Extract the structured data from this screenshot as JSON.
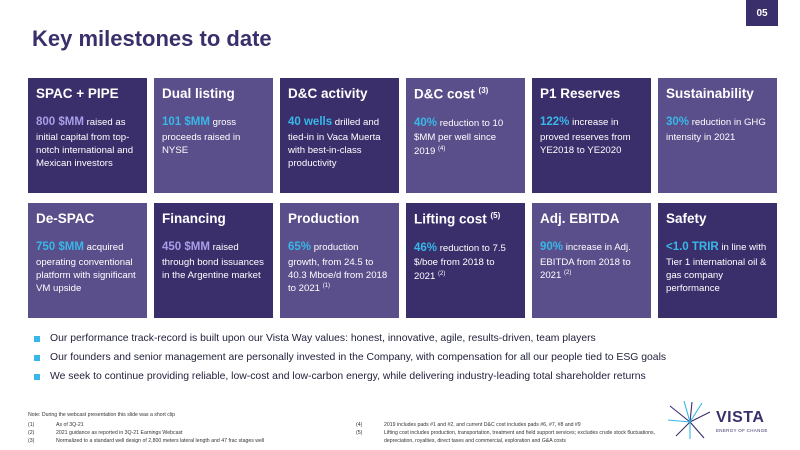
{
  "page_number": "05",
  "title": "Key milestones to date",
  "tiles_row1": [
    {
      "title": "SPAC + PIPE",
      "title_sup": "",
      "highlight": "800 $MM",
      "hl_color": "violet",
      "text": " raised as initial capital from top-notch international and Mexican investors",
      "text_sup": "",
      "bg": "dark"
    },
    {
      "title": "Dual listing",
      "title_sup": "",
      "highlight": "101 $MM",
      "hl_color": "cyan",
      "text": " gross proceeds raised in NYSE",
      "text_sup": "",
      "bg": "mid"
    },
    {
      "title": "D&C activity",
      "title_sup": "",
      "highlight": "40 wells",
      "hl_color": "cyan",
      "text": " drilled and tied-in in Vaca Muerta with best-in-class productivity",
      "text_sup": "",
      "bg": "dark"
    },
    {
      "title": "D&C cost",
      "title_sup": "(3)",
      "highlight": "40%",
      "hl_color": "cyan",
      "text": " reduction to 10 $MM per well since 2019",
      "text_sup": "(4)",
      "bg": "mid"
    },
    {
      "title": "P1 Reserves",
      "title_sup": "",
      "highlight": "122%",
      "hl_color": "cyan",
      "text": " increase in proved reserves from YE2018 to YE2020",
      "text_sup": "",
      "bg": "dark"
    },
    {
      "title": "Sustainability",
      "title_sup": "",
      "highlight": "30%",
      "hl_color": "cyan",
      "text": " reduction in GHG intensity in 2021",
      "text_sup": "",
      "bg": "mid"
    }
  ],
  "tiles_row2": [
    {
      "title": "De-SPAC",
      "title_sup": "",
      "highlight": "750 $MM",
      "hl_color": "cyan",
      "text": " acquired operating conventional platform with significant VM upside",
      "text_sup": "",
      "bg": "mid"
    },
    {
      "title": "Financing",
      "title_sup": "",
      "highlight": "450 $MM",
      "hl_color": "violet",
      "text": " raised through bond issuances in the Argentine market",
      "text_sup": "",
      "bg": "dark"
    },
    {
      "title": "Production",
      "title_sup": "",
      "highlight": "65%",
      "hl_color": "cyan",
      "text": " production growth, from 24.5 to 40.3 Mboe/d from 2018 to 2021",
      "text_sup": "(1)",
      "bg": "mid"
    },
    {
      "title": "Lifting cost",
      "title_sup": "(5)",
      "highlight": "46%",
      "hl_color": "cyan",
      "text": " reduction to 7.5 $/boe from 2018 to 2021",
      "text_sup": "(2)",
      "bg": "dark"
    },
    {
      "title": "Adj. EBITDA",
      "title_sup": "",
      "highlight": "90%",
      "hl_color": "cyan",
      "text": " increase in Adj. EBITDA from 2018 to 2021",
      "text_sup": "(2)",
      "bg": "mid"
    },
    {
      "title": "Safety",
      "title_sup": "",
      "highlight": "<1.0 TRIR",
      "hl_color": "cyan",
      "text": " in line with Tier 1 international oil & gas company performance",
      "text_sup": "",
      "bg": "dark"
    }
  ],
  "bullets": [
    "Our performance track-record is built upon our Vista Way values: honest, innovative, agile, results-driven, team players",
    "Our founders and senior management are personally invested in the Company, with compensation for all our people tied to ESG goals",
    "We seek to continue providing reliable, low-cost and low-carbon energy, while delivering industry-leading total shareholder returns"
  ],
  "notes_title": "Note: During the webcast presentation this slide was a short clip",
  "notes_left": [
    {
      "n": "(1)",
      "text": "As of 3Q-21"
    },
    {
      "n": "(2)",
      "text": "2021 guidance as reported in 3Q-21 Earnings Webcast"
    },
    {
      "n": "(3)",
      "text": "Normalized to a standard well design of 2,800 meters lateral length and 47 frac stages well"
    }
  ],
  "notes_right": [
    {
      "n": "(4)",
      "text": "2019 includes pads #1 and #2, and current D&C cost includes pads #6, #7, #8 and #9"
    },
    {
      "n": "(5)",
      "text": "Lifting cost includes production, transportation, treatment and field support services; excludes crude stock fluctuations, depreciation, royalties, direct taxes and commercial, exploration and G&A costs"
    }
  ],
  "logo": {
    "word": "VISTA",
    "tag": "ENERGY OF CHANGE"
  },
  "colors": {
    "dark_tile": "#3a2f6b",
    "mid_tile": "#5a4f8a",
    "accent_cyan": "#38b7e8",
    "accent_violet": "#a89ee8"
  }
}
